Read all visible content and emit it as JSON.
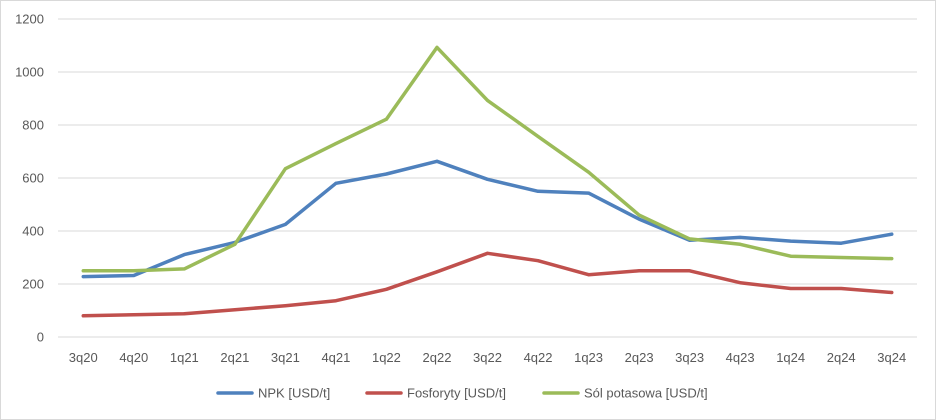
{
  "chart_data": {
    "type": "line",
    "categories": [
      "3q20",
      "4q20",
      "1q21",
      "2q21",
      "3q21",
      "4q21",
      "1q22",
      "2q22",
      "3q22",
      "4q22",
      "1q23",
      "2q23",
      "3q23",
      "4q23",
      "1q24",
      "2q24",
      "3q24"
    ],
    "series": [
      {
        "name": "NPK  [USD/t]",
        "color": "#4f81bd",
        "values": [
          228,
          232,
          311,
          357,
          425,
          580,
          615,
          663,
          595,
          550,
          543,
          445,
          365,
          376,
          362,
          354,
          388
        ]
      },
      {
        "name": "Fosforyty [USD/t]",
        "color": "#c0504d",
        "values": [
          80,
          84,
          88,
          103,
          118,
          137,
          180,
          246,
          316,
          288,
          235,
          250,
          250,
          205,
          183,
          183,
          168
        ]
      },
      {
        "name": "Sól potasowa [USD/t]",
        "color": "#9bbb59",
        "values": [
          250,
          250,
          257,
          350,
          635,
          730,
          822,
          1093,
          893,
          757,
          622,
          460,
          370,
          350,
          305,
          300,
          296
        ]
      }
    ],
    "ylim": [
      0,
      1200
    ],
    "yticks": [
      "0",
      "200",
      "400",
      "600",
      "800",
      "1000",
      "1200"
    ],
    "grid": true,
    "legend": "bottom"
  }
}
